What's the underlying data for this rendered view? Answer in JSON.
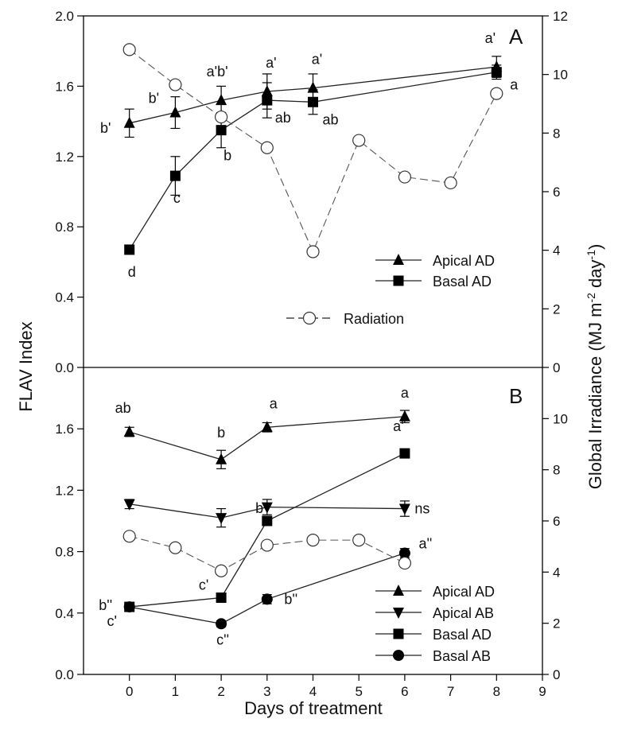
{
  "chart_data": {
    "type": "line",
    "xlabel": "Days of treatment",
    "ylabel_left": "FLAV Index",
    "ylabel_right": "Global Irradiance (MJ m⁻² day⁻¹)",
    "x_ticks": [
      "0",
      "1",
      "2",
      "3",
      "4",
      "5",
      "6",
      "7",
      "8",
      "9"
    ],
    "xlim": [
      -1,
      9
    ],
    "left_ticks": [
      "0.0",
      "0.4",
      "0.8",
      "1.2",
      "1.6",
      "2.0"
    ],
    "left_ticks_b": [
      "0.0",
      "0.4",
      "0.8",
      "1.2",
      "1.6"
    ],
    "right_ticks": [
      "0",
      "2",
      "4",
      "6",
      "8",
      "10",
      "12"
    ],
    "right_ticks_b": [
      "0",
      "2",
      "4",
      "6",
      "8",
      "10"
    ],
    "panels": [
      {
        "label": "A",
        "ylim": [
          0,
          2
        ],
        "y2lim": [
          0,
          12
        ],
        "series": [
          {
            "name": "Apical AD",
            "marker": "triangle-up",
            "points": [
              {
                "x": 0,
                "y": 1.39,
                "err": 0.08,
                "label": "b'"
              },
              {
                "x": 1,
                "y": 1.45,
                "err": 0.09,
                "label": "b'"
              },
              {
                "x": 2,
                "y": 1.52,
                "err": 0.08,
                "label": "a'b'"
              },
              {
                "x": 3,
                "y": 1.57,
                "err": 0.1,
                "label": "a'"
              },
              {
                "x": 4,
                "y": 1.59,
                "err": 0.08,
                "label": "a'"
              },
              {
                "x": 8,
                "y": 1.71,
                "err": 0.06,
                "label": "a'"
              }
            ]
          },
          {
            "name": "Basal AD",
            "marker": "square",
            "points": [
              {
                "x": 0,
                "y": 0.67,
                "err": 0.02,
                "label": "d"
              },
              {
                "x": 1,
                "y": 1.09,
                "err": 0.11,
                "label": "c"
              },
              {
                "x": 2,
                "y": 1.35,
                "err": 0.1,
                "label": "b"
              },
              {
                "x": 3,
                "y": 1.52,
                "err": 0.1,
                "label": "ab"
              },
              {
                "x": 4,
                "y": 1.51,
                "err": 0.07,
                "label": "ab"
              },
              {
                "x": 8,
                "y": 1.68,
                "err": 0.04,
                "label": "a"
              }
            ]
          },
          {
            "name": "Radiation",
            "marker": "circle-open",
            "axis": "right",
            "points": [
              {
                "x": 0,
                "y": 10.85
              },
              {
                "x": 1,
                "y": 9.65
              },
              {
                "x": 2,
                "y": 8.55
              },
              {
                "x": 3,
                "y": 7.5
              },
              {
                "x": 4,
                "y": 3.95
              },
              {
                "x": 5,
                "y": 7.75
              },
              {
                "x": 6,
                "y": 6.5
              },
              {
                "x": 7,
                "y": 6.3
              },
              {
                "x": 8,
                "y": 9.35
              }
            ]
          }
        ],
        "legend": [
          {
            "label": "Apical AD",
            "marker": "triangle-up"
          },
          {
            "label": "Basal AD",
            "marker": "square"
          },
          {
            "label": "Radiation",
            "marker": "circle-open"
          }
        ]
      },
      {
        "label": "B",
        "ylim": [
          0,
          2
        ],
        "y2lim": [
          0,
          12
        ],
        "series": [
          {
            "name": "Apical AD",
            "marker": "triangle-up",
            "points": [
              {
                "x": 0,
                "y": 1.58,
                "err": 0.03,
                "label": "ab"
              },
              {
                "x": 2,
                "y": 1.4,
                "err": 0.06,
                "label": "b"
              },
              {
                "x": 3,
                "y": 1.61,
                "err": 0.03,
                "label": "a"
              },
              {
                "x": 6,
                "y": 1.68,
                "err": 0.04,
                "label": "a"
              }
            ]
          },
          {
            "name": "Apical AB",
            "marker": "triangle-down",
            "points": [
              {
                "x": 0,
                "y": 1.11,
                "err": 0.03,
                "label": ""
              },
              {
                "x": 2,
                "y": 1.02,
                "err": 0.06,
                "label": ""
              },
              {
                "x": 3,
                "y": 1.09,
                "err": 0.05,
                "label": ""
              },
              {
                "x": 6,
                "y": 1.08,
                "err": 0.05,
                "label": "ns"
              }
            ]
          },
          {
            "name": "Basal AD",
            "marker": "square",
            "points": [
              {
                "x": 0,
                "y": 0.44,
                "err": 0.02,
                "label": "b''"
              },
              {
                "x": 2,
                "y": 0.5,
                "err": 0.02,
                "label": "c'"
              },
              {
                "x": 3,
                "y": 1.0,
                "err": 0.03,
                "label": "b'"
              },
              {
                "x": 6,
                "y": 1.44,
                "err": 0.02,
                "label": "a'"
              }
            ]
          },
          {
            "name": "Basal AB",
            "marker": "circle-filled",
            "points": [
              {
                "x": 0,
                "y": 0.44,
                "err": 0.02,
                "label": "c'"
              },
              {
                "x": 2,
                "y": 0.33,
                "err": 0.02,
                "label": "c''"
              },
              {
                "x": 3,
                "y": 0.49,
                "err": 0.03,
                "label": "b''"
              },
              {
                "x": 6,
                "y": 0.79,
                "err": 0.03,
                "label": "a''"
              }
            ]
          },
          {
            "name": "Radiation",
            "marker": "circle-open",
            "axis": "right",
            "points": [
              {
                "x": 0,
                "y": 5.4
              },
              {
                "x": 1,
                "y": 4.95
              },
              {
                "x": 2,
                "y": 4.05
              },
              {
                "x": 3,
                "y": 5.05
              },
              {
                "x": 4,
                "y": 5.25
              },
              {
                "x": 5,
                "y": 5.25
              },
              {
                "x": 6,
                "y": 4.35
              }
            ]
          }
        ],
        "legend": [
          {
            "label": "Apical AD",
            "marker": "triangle-up"
          },
          {
            "label": "Apical AB",
            "marker": "triangle-down"
          },
          {
            "label": "Basal AD",
            "marker": "square"
          },
          {
            "label": "Basal AB",
            "marker": "circle-filled"
          }
        ]
      }
    ]
  }
}
